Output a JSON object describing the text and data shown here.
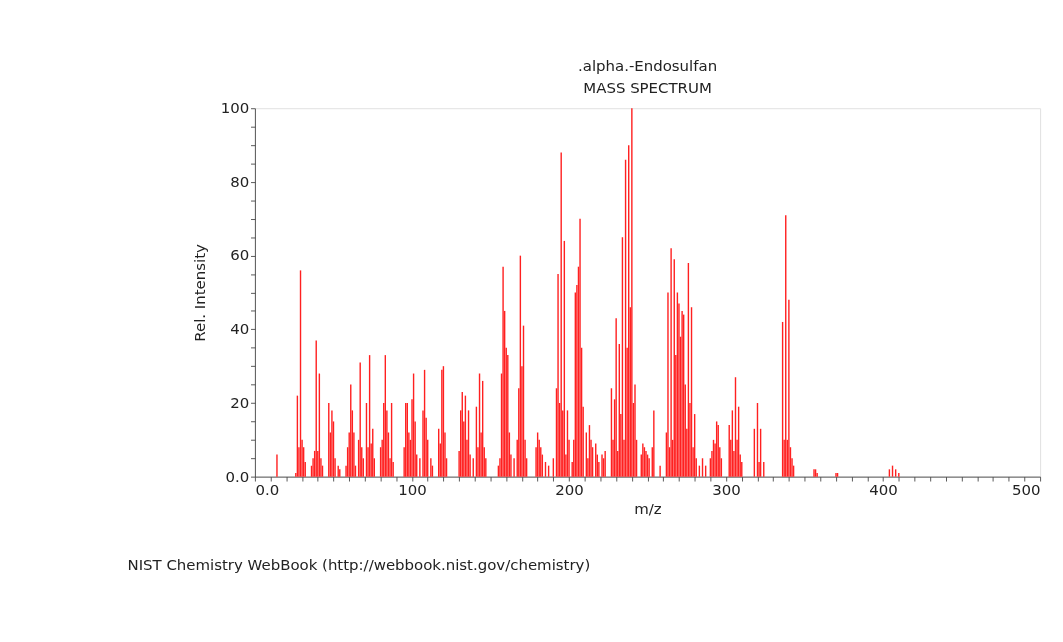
{
  "chart_data": {
    "type": "bar",
    "title": ".alpha.-Endosulfan",
    "subtitle": "MASS SPECTRUM",
    "xlabel": "m/z",
    "ylabel": "Rel. Intensity",
    "annotations": [
      "NIST Chemistry WebBook (http://webbook.nist.gov/chemistry)"
    ],
    "x": [
      14,
      26,
      27,
      28,
      29,
      30,
      31,
      32,
      36,
      37,
      38,
      39,
      40,
      41,
      42,
      43,
      47,
      48,
      49,
      50,
      51,
      53,
      54,
      58,
      59,
      60,
      61,
      62,
      63,
      64,
      66,
      67,
      68,
      69,
      71,
      72,
      73,
      74,
      75,
      76,
      80,
      81,
      82,
      83,
      84,
      85,
      86,
      87,
      88,
      95,
      96,
      97,
      98,
      99,
      100,
      101,
      102,
      103,
      105,
      107,
      108,
      109,
      110,
      112,
      113,
      117,
      118,
      119,
      120,
      121,
      122,
      130,
      131,
      132,
      133,
      134,
      135,
      136,
      137,
      139,
      141,
      142,
      143,
      144,
      145,
      146,
      147,
      155,
      156,
      157,
      158,
      159,
      160,
      161,
      162,
      163,
      165,
      167,
      168,
      169,
      170,
      171,
      172,
      173,
      179,
      180,
      181,
      182,
      183,
      185,
      187,
      190,
      192,
      193,
      194,
      195,
      196,
      197,
      198,
      199,
      200,
      202,
      203,
      204,
      205,
      206,
      207,
      208,
      209,
      211,
      212,
      213,
      214,
      215,
      217,
      218,
      219,
      221,
      222,
      223,
      227,
      228,
      229,
      230,
      231,
      232,
      233,
      234,
      235,
      236,
      237,
      238,
      239,
      240,
      241,
      242,
      243,
      246,
      247,
      248,
      249,
      250,
      251,
      253,
      254,
      258,
      262,
      263,
      264,
      265,
      266,
      267,
      268,
      269,
      270,
      271,
      272,
      273,
      274,
      275,
      276,
      277,
      278,
      279,
      280,
      281,
      283,
      285,
      287,
      290,
      291,
      292,
      293,
      294,
      295,
      296,
      297,
      302,
      303,
      304,
      305,
      306,
      307,
      308,
      309,
      310,
      318,
      320,
      321,
      322,
      324,
      336,
      337,
      338,
      339,
      340,
      341,
      342,
      343,
      356,
      357,
      358,
      370,
      371,
      404,
      406,
      408,
      410
    ],
    "values": [
      6,
      1,
      22,
      8,
      56,
      10,
      8,
      4,
      3,
      5,
      7,
      37,
      7,
      28,
      5,
      3,
      20,
      12,
      18,
      15,
      5,
      3,
      2,
      3,
      8,
      12,
      25,
      18,
      12,
      3,
      10,
      31,
      8,
      5,
      20,
      8,
      33,
      9,
      13,
      5,
      8,
      10,
      20,
      33,
      18,
      12,
      5,
      20,
      4,
      8,
      20,
      20,
      12,
      10,
      21,
      28,
      15,
      6,
      5,
      18,
      29,
      16,
      10,
      5,
      3,
      13,
      9,
      29,
      30,
      12,
      5,
      7,
      18,
      23,
      15,
      22,
      10,
      18,
      6,
      5,
      19,
      8,
      28,
      12,
      26,
      8,
      5,
      3,
      5,
      28,
      57,
      45,
      35,
      33,
      12,
      6,
      5,
      10,
      24,
      60,
      30,
      41,
      10,
      5,
      8,
      12,
      10,
      8,
      6,
      4,
      3,
      5,
      24,
      55,
      20,
      88,
      18,
      64,
      6,
      18,
      10,
      4,
      10,
      50,
      52,
      57,
      70,
      35,
      19,
      12,
      5,
      14,
      10,
      8,
      9,
      6,
      4,
      6,
      5,
      7,
      24,
      10,
      21,
      43,
      7,
      36,
      17,
      65,
      10,
      86,
      35,
      90,
      46,
      100,
      20,
      25,
      10,
      6,
      9,
      8,
      7,
      6,
      5,
      8,
      18,
      3,
      12,
      50,
      8,
      62,
      10,
      59,
      33,
      50,
      47,
      38,
      45,
      44,
      25,
      13,
      58,
      20,
      46,
      8,
      17,
      5,
      3,
      5,
      3,
      5,
      7,
      10,
      9,
      15,
      14,
      8,
      5,
      14,
      10,
      18,
      7,
      27,
      10,
      19,
      6,
      4,
      13,
      20,
      4,
      13,
      4,
      42,
      10,
      71,
      10,
      48,
      8,
      5,
      3,
      2,
      2,
      1,
      1,
      1,
      2,
      3,
      2,
      1
    ],
    "color": "#ff2020",
    "xlim": [
      0,
      500
    ],
    "ylim": [
      0,
      100
    ],
    "xticks": [
      {
        "value": 0,
        "label": "0.0"
      },
      {
        "value": 10,
        "label": null
      },
      {
        "value": 20,
        "label": null
      },
      {
        "value": 30,
        "label": null
      },
      {
        "value": 40,
        "label": null
      },
      {
        "value": 50,
        "label": null
      },
      {
        "value": 60,
        "label": null
      },
      {
        "value": 70,
        "label": null
      },
      {
        "value": 80,
        "label": null
      },
      {
        "value": 90,
        "label": null
      },
      100,
      {
        "value": 110,
        "label": null
      },
      {
        "value": 120,
        "label": null
      },
      {
        "value": 130,
        "label": null
      },
      {
        "value": 140,
        "label": null
      },
      {
        "value": 150,
        "label": null
      },
      {
        "value": 160,
        "label": null
      },
      {
        "value": 170,
        "label": null
      },
      {
        "value": 180,
        "label": null
      },
      {
        "value": 190,
        "label": null
      },
      200,
      {
        "value": 210,
        "label": null
      },
      {
        "value": 220,
        "label": null
      },
      {
        "value": 230,
        "label": null
      },
      {
        "value": 240,
        "label": null
      },
      {
        "value": 250,
        "label": null
      },
      {
        "value": 260,
        "label": null
      },
      {
        "value": 270,
        "label": null
      },
      {
        "value": 280,
        "label": null
      },
      {
        "value": 290,
        "label": null
      },
      300,
      {
        "value": 310,
        "label": null
      },
      {
        "value": 320,
        "label": null
      },
      {
        "value": 330,
        "label": null
      },
      {
        "value": 340,
        "label": null
      },
      {
        "value": 350,
        "label": null
      },
      {
        "value": 360,
        "label": null
      },
      {
        "value": 370,
        "label": null
      },
      {
        "value": 380,
        "label": null
      },
      {
        "value": 390,
        "label": null
      },
      400,
      {
        "value": 410,
        "label": null
      },
      {
        "value": 420,
        "label": null
      },
      {
        "value": 430,
        "label": null
      },
      {
        "value": 440,
        "label": null
      },
      {
        "value": 450,
        "label": null
      },
      {
        "value": 460,
        "label": null
      },
      {
        "value": 470,
        "label": null
      },
      {
        "value": 480,
        "label": null
      },
      {
        "value": 490,
        "label": null
      },
      500
    ],
    "yticks": [
      {
        "value": 0,
        "label": "0.0"
      },
      {
        "value": 5,
        "label": null
      },
      {
        "value": 10,
        "label": null
      },
      {
        "value": 15,
        "label": null
      },
      20,
      {
        "value": 25,
        "label": null
      },
      {
        "value": 30,
        "label": null
      },
      {
        "value": 35,
        "label": null
      },
      40,
      {
        "value": 45,
        "label": null
      },
      {
        "value": 50,
        "label": null
      },
      {
        "value": 55,
        "label": null
      },
      60,
      {
        "value": 65,
        "label": null
      },
      {
        "value": 70,
        "label": null
      },
      {
        "value": 75,
        "label": null
      },
      80,
      {
        "value": 85,
        "label": null
      },
      {
        "value": 90,
        "label": null
      },
      {
        "value": 95,
        "label": null
      },
      100
    ],
    "grid": false
  }
}
